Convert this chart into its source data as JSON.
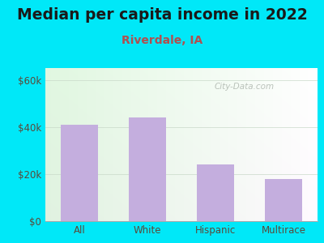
{
  "title": "Median per capita income in 2022",
  "subtitle": "Riverdale, IA",
  "categories": [
    "All",
    "White",
    "Hispanic",
    "Multirace"
  ],
  "values": [
    41000,
    44000,
    24000,
    18000
  ],
  "bar_color": "#c4aede",
  "title_fontsize": 13.5,
  "subtitle_fontsize": 10,
  "subtitle_color": "#b05050",
  "title_color": "#1a1a1a",
  "tick_color": "#5a4a3a",
  "background_outer": "#00e8f8",
  "ylim": [
    0,
    65000
  ],
  "yticks": [
    0,
    20000,
    40000,
    60000
  ],
  "ytick_labels": [
    "$0",
    "$20k",
    "$40k",
    "$60k"
  ],
  "watermark": "City-Data.com",
  "bar_width": 0.55,
  "grid_color": "#c8d8c8",
  "grid_alpha": 0.8
}
